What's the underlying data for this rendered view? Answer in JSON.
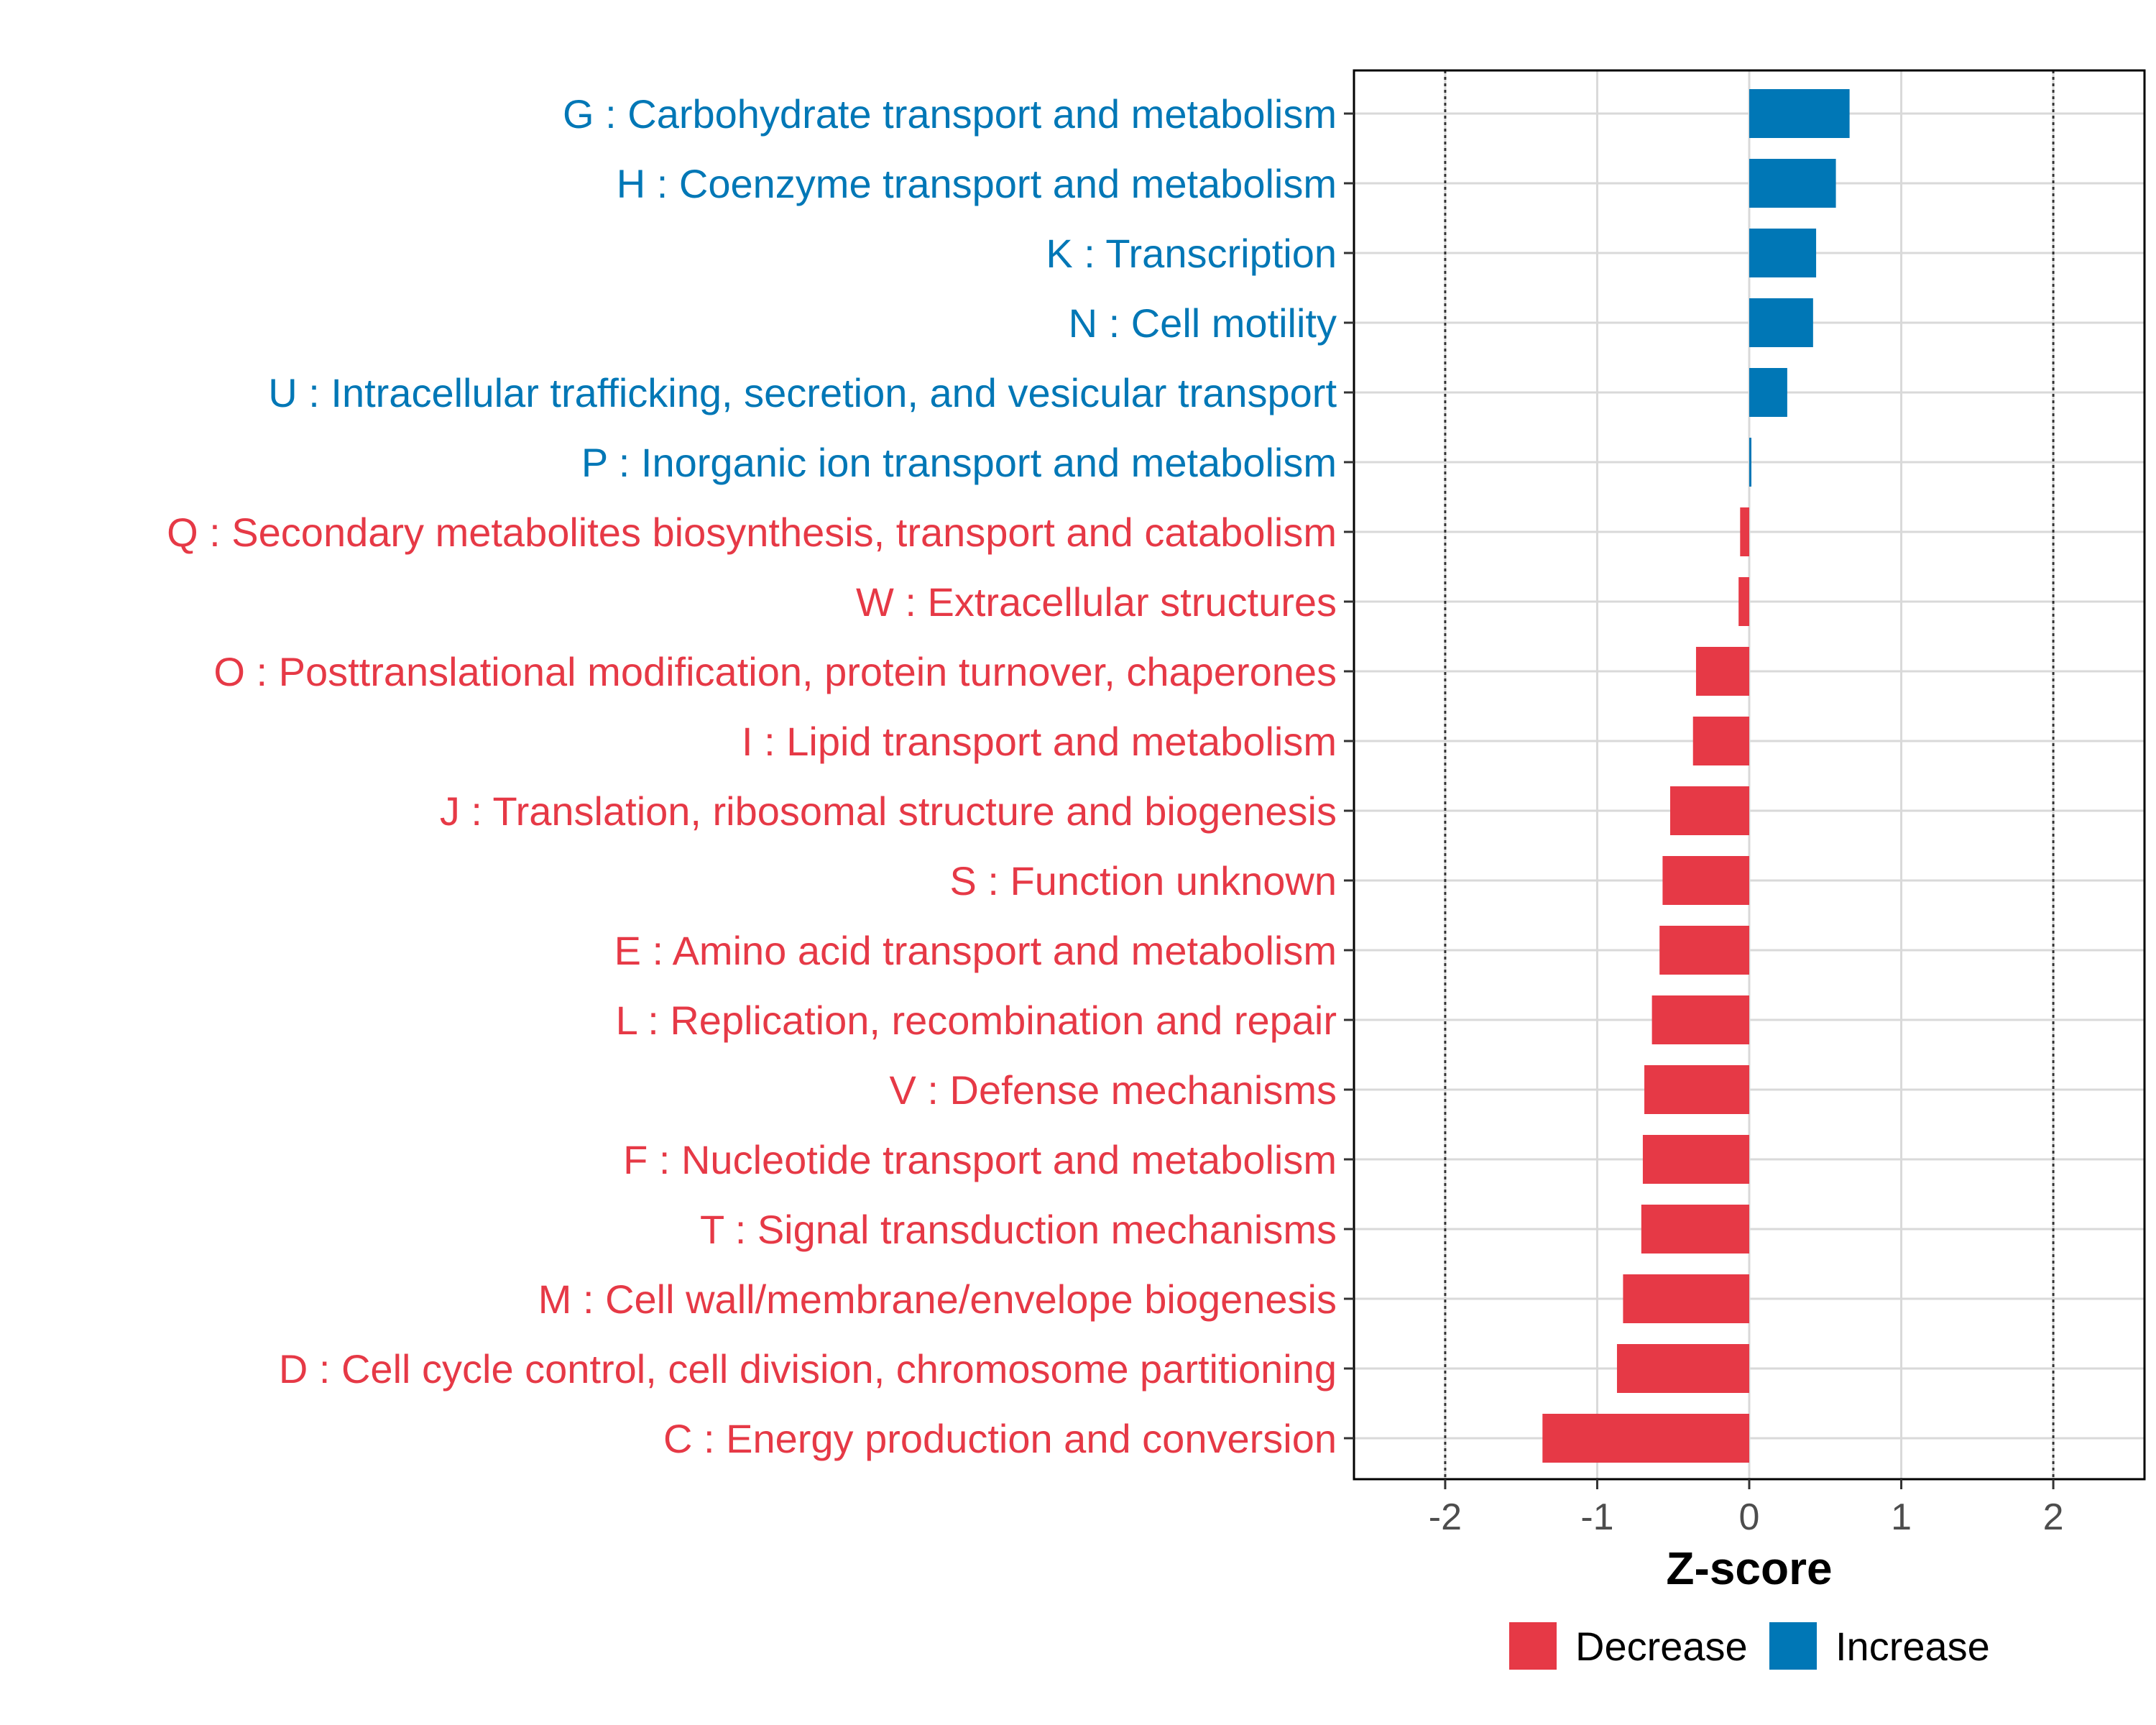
{
  "chart_data": {
    "type": "bar",
    "orientation": "horizontal",
    "xlabel": "Z-score",
    "xlim": [
      -2.6,
      2.6
    ],
    "xticks": [
      -2,
      -1,
      0,
      1,
      2
    ],
    "xtick_labels": [
      "-2",
      "-1",
      "0",
      "1",
      "2"
    ],
    "reference_lines": [
      -2,
      2
    ],
    "grid": true,
    "legend_position": "bottom",
    "colors": {
      "Decrease": "#e63946",
      "Increase": "#0077b6"
    },
    "legend": [
      {
        "label": "Decrease",
        "color": "#e63946"
      },
      {
        "label": "Increase",
        "color": "#0077b6"
      }
    ],
    "categories": [
      "G : Carbohydrate transport and metabolism",
      "H : Coenzyme transport and metabolism",
      "K : Transcription",
      "N : Cell motility",
      "U : Intracellular trafficking, secretion, and vesicular transport",
      "P : Inorganic ion transport and metabolism",
      "Q : Secondary metabolites biosynthesis, transport and catabolism",
      "W : Extracellular structures",
      "O : Posttranslational modification, protein turnover, chaperones",
      "I : Lipid transport and metabolism",
      "J : Translation, ribosomal structure and biogenesis",
      "S : Function unknown",
      "E : Amino acid transport and metabolism",
      "L : Replication, recombination and repair",
      "V : Defense mechanisms",
      "F : Nucleotide transport and metabolism",
      "T : Signal transduction mechanisms",
      "M : Cell wall/membrane/envelope biogenesis",
      "D : Cell cycle control, cell division, chromosome partitioning",
      "C : Energy production and conversion"
    ],
    "values": [
      0.66,
      0.57,
      0.44,
      0.42,
      0.25,
      0.01,
      -0.06,
      -0.07,
      -0.35,
      -0.37,
      -0.52,
      -0.57,
      -0.59,
      -0.64,
      -0.69,
      -0.7,
      -0.71,
      -0.83,
      -0.87,
      -1.36
    ],
    "groups": [
      "Increase",
      "Increase",
      "Increase",
      "Increase",
      "Increase",
      "Increase",
      "Decrease",
      "Decrease",
      "Decrease",
      "Decrease",
      "Decrease",
      "Decrease",
      "Decrease",
      "Decrease",
      "Decrease",
      "Decrease",
      "Decrease",
      "Decrease",
      "Decrease",
      "Decrease"
    ]
  }
}
